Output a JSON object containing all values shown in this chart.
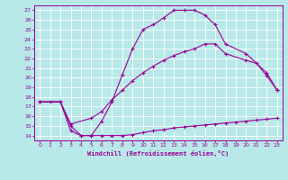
{
  "xlabel": "Windchill (Refroidissement éolien,°C)",
  "bg_color": "#b8e8e8",
  "line_color": "#990099",
  "grid_color": "#ffffff",
  "xlim": [
    -0.5,
    23.5
  ],
  "ylim": [
    13.5,
    27.5
  ],
  "xticks": [
    0,
    1,
    2,
    3,
    4,
    5,
    6,
    7,
    8,
    9,
    10,
    11,
    12,
    13,
    14,
    15,
    16,
    17,
    18,
    19,
    20,
    21,
    22,
    23
  ],
  "yticks": [
    14,
    15,
    16,
    17,
    18,
    19,
    20,
    21,
    22,
    23,
    24,
    25,
    26,
    27
  ],
  "curve1_x": [
    0,
    1,
    2,
    3,
    4,
    5,
    6,
    7,
    8,
    9,
    10,
    11,
    12,
    13,
    14,
    15,
    16,
    17,
    18,
    20,
    22,
    23
  ],
  "curve1_y": [
    17.5,
    17.5,
    17.5,
    15.0,
    14.0,
    14.0,
    15.5,
    17.5,
    20.3,
    23.0,
    25.0,
    25.5,
    26.2,
    27.0,
    27.0,
    27.0,
    26.5,
    25.5,
    23.5,
    22.5,
    20.5,
    18.7
  ],
  "curve2_x": [
    0,
    2,
    3,
    4,
    5,
    6,
    7,
    8,
    9,
    10,
    11,
    12,
    13,
    14,
    15,
    16,
    17,
    18,
    19,
    20,
    21,
    22,
    23
  ],
  "curve2_y": [
    17.5,
    17.5,
    14.5,
    14.0,
    14.0,
    14.0,
    14.0,
    14.0,
    14.1,
    14.3,
    14.5,
    14.6,
    14.8,
    14.9,
    15.0,
    15.1,
    15.2,
    15.3,
    15.4,
    15.5,
    15.6,
    15.7,
    15.8
  ],
  "curve3_x": [
    0,
    2,
    3,
    5,
    6,
    7,
    8,
    9,
    10,
    11,
    12,
    13,
    14,
    15,
    16,
    17,
    18,
    20,
    21,
    22,
    23
  ],
  "curve3_y": [
    17.5,
    17.5,
    15.2,
    15.8,
    16.5,
    17.7,
    18.7,
    19.7,
    20.5,
    21.2,
    21.8,
    22.3,
    22.7,
    23.0,
    23.5,
    23.5,
    22.5,
    21.8,
    21.5,
    20.2,
    18.7
  ]
}
